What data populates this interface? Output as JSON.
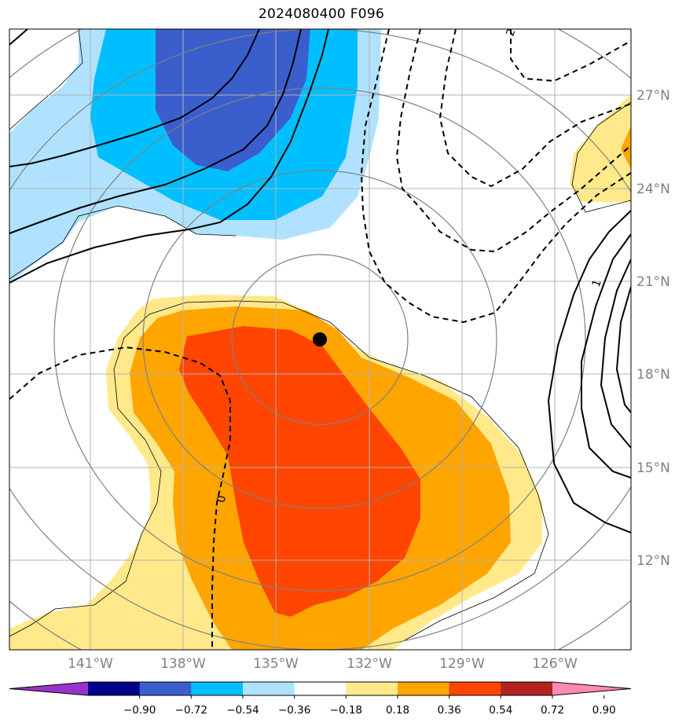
{
  "title": "2024080400 F096",
  "lat_labels": [
    "27°N",
    "24°N",
    "21°N",
    "18°N",
    "15°N",
    "12°N"
  ],
  "lon_labels": [
    "141°W",
    "138°W",
    "135°W",
    "132°W",
    "129°W",
    "126°W"
  ],
  "contour_labels": [
    "2",
    "1",
    "0"
  ],
  "colorbar": {
    "ticks": [
      "−0.90",
      "−0.72",
      "−0.54",
      "−0.36",
      "−0.18",
      "0.18",
      "0.36",
      "0.54",
      "0.72",
      "0.90"
    ],
    "colors": [
      "#9932cc",
      "#00008b",
      "#3a5fcd",
      "#00bfff",
      "#b0e2ff",
      "#ffffff",
      "#ffe98a",
      "#ffa500",
      "#ff4500",
      "#b22222",
      "#ff8ab4"
    ]
  },
  "fill_colors": {
    "light_blue": "#b0e2ff",
    "cyan": "#00bfff",
    "royal_blue": "#3a5fcd",
    "light_yellow": "#ffe98a",
    "orange": "#ffa500",
    "red_orange": "#ff4500"
  },
  "storm_marker": {
    "lat": 19.0,
    "lon": -133.4
  }
}
